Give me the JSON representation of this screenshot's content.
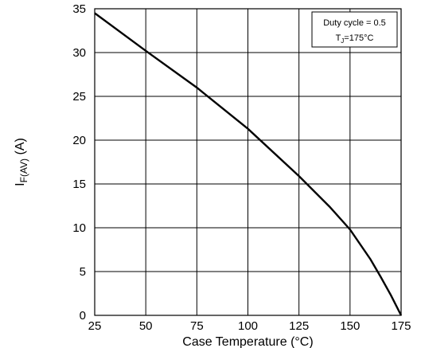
{
  "chart_data": {
    "type": "line",
    "xlabel": "Case Temperature (°C)",
    "ylabel": {
      "main": "I",
      "subscript": "F(AV)",
      "unit": " (A)"
    },
    "xlim": [
      25,
      175
    ],
    "ylim": [
      0,
      35
    ],
    "xticks": [
      25,
      50,
      75,
      100,
      125,
      150,
      175
    ],
    "yticks": [
      0,
      5,
      10,
      15,
      20,
      25,
      30,
      35
    ],
    "grid": true,
    "legend_placement": "top-right",
    "legend": {
      "line1": "Duty cycle = 0.5",
      "line2_main": "T",
      "line2_sub": "J",
      "line2_rest": "=175°C"
    },
    "series": [
      {
        "x": [
          25,
          50,
          75,
          100,
          125,
          140,
          150,
          160,
          165,
          170,
          175
        ],
        "y": [
          34.5,
          30.2,
          26.0,
          21.3,
          15.9,
          12.4,
          9.8,
          6.4,
          4.4,
          2.3,
          0
        ]
      }
    ]
  }
}
